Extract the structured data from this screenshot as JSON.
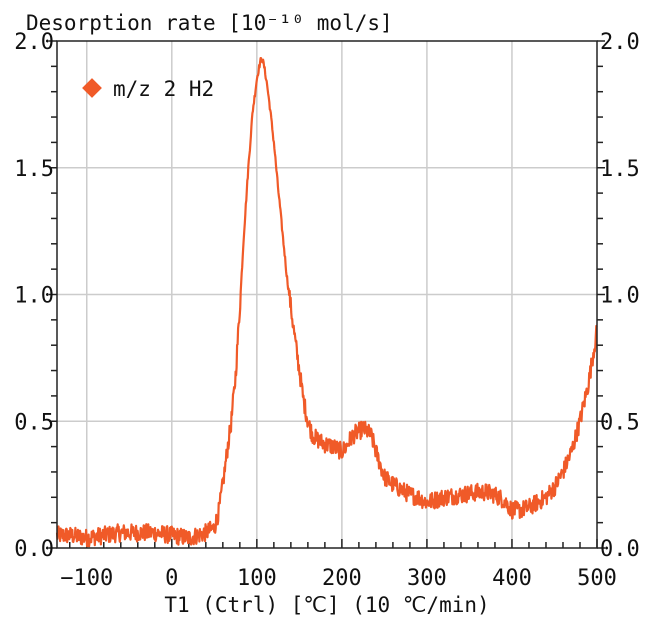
{
  "chart_data": {
    "type": "line",
    "title": "",
    "ylabel": "Desorption rate [10⁻¹⁰ mol/s]",
    "xlabel": "T1 (Ctrl) [℃] (10 ℃/min)",
    "xlim": [
      -135,
      500
    ],
    "ylim": [
      0.0,
      2.0
    ],
    "x_ticks": [
      -100,
      0,
      100,
      200,
      300,
      400,
      500
    ],
    "x_tick_labels": [
      "−100",
      "0",
      "100",
      "200",
      "300",
      "400",
      "500"
    ],
    "y_ticks": [
      0.0,
      0.5,
      1.0,
      1.5,
      2.0
    ],
    "y_tick_labels": [
      "0.0",
      "0.5",
      "1.0",
      "1.5",
      "2.0"
    ],
    "grid": true,
    "legend": {
      "position": "top-left",
      "entries": [
        "m/z 2 H2"
      ]
    },
    "series": [
      {
        "name": "m/z 2 H2",
        "color": "#F05A28",
        "marker": "diamond",
        "x": [
          -135,
          -120,
          -100,
          -80,
          -60,
          -40,
          -20,
          0,
          20,
          40,
          50,
          55,
          60,
          65,
          70,
          75,
          80,
          85,
          90,
          95,
          100,
          104,
          106,
          108,
          112,
          116,
          120,
          125,
          130,
          135,
          140,
          145,
          150,
          155,
          160,
          165,
          170,
          180,
          190,
          200,
          205,
          210,
          215,
          220,
          225,
          230,
          235,
          240,
          245,
          250,
          260,
          270,
          280,
          290,
          300,
          310,
          320,
          340,
          360,
          370,
          380,
          390,
          400,
          410,
          420,
          430,
          440,
          450,
          460,
          470,
          480,
          490,
          500
        ],
        "y": [
          0.05,
          0.05,
          0.04,
          0.05,
          0.06,
          0.06,
          0.06,
          0.05,
          0.04,
          0.06,
          0.08,
          0.14,
          0.25,
          0.38,
          0.5,
          0.68,
          0.95,
          1.25,
          1.5,
          1.72,
          1.85,
          1.92,
          1.93,
          1.91,
          1.83,
          1.72,
          1.6,
          1.42,
          1.25,
          1.08,
          0.95,
          0.82,
          0.7,
          0.58,
          0.5,
          0.45,
          0.43,
          0.41,
          0.4,
          0.38,
          0.4,
          0.43,
          0.45,
          0.46,
          0.47,
          0.46,
          0.44,
          0.38,
          0.33,
          0.28,
          0.25,
          0.23,
          0.21,
          0.2,
          0.18,
          0.19,
          0.2,
          0.21,
          0.22,
          0.22,
          0.21,
          0.19,
          0.15,
          0.15,
          0.16,
          0.18,
          0.2,
          0.24,
          0.3,
          0.38,
          0.5,
          0.65,
          0.86
        ]
      }
    ]
  }
}
